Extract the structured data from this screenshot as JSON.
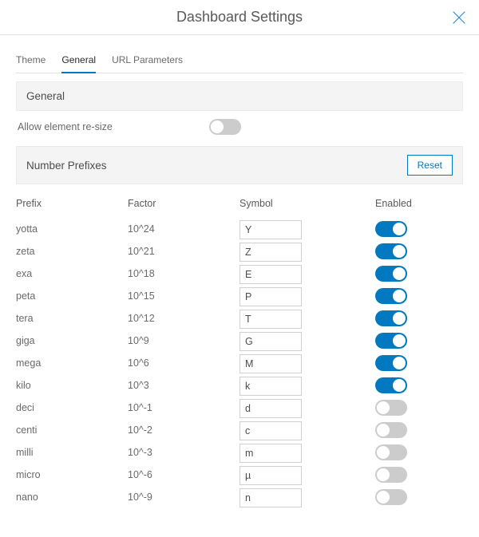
{
  "colors": {
    "accent": "#0079c1",
    "border": "#e0e0e0",
    "band_bg": "#f4f4f4",
    "text": "#4c4c4c",
    "muted": "#6a6a6a",
    "toggle_off": "#cccccc"
  },
  "header": {
    "title": "Dashboard Settings",
    "close_icon": "close-icon"
  },
  "tabs": [
    {
      "id": "theme",
      "label": "Theme",
      "active": false
    },
    {
      "id": "general",
      "label": "General",
      "active": true
    },
    {
      "id": "url",
      "label": "URL Parameters",
      "active": false
    }
  ],
  "sections": {
    "general": {
      "title": "General",
      "allow_resize": {
        "label": "Allow element re-size",
        "value": false
      }
    },
    "prefixes": {
      "title": "Number Prefixes",
      "reset_label": "Reset",
      "columns": {
        "prefix": "Prefix",
        "factor": "Factor",
        "symbol": "Symbol",
        "enabled": "Enabled"
      },
      "rows": [
        {
          "prefix": "yotta",
          "factor": "10^24",
          "symbol": "Y",
          "enabled": true
        },
        {
          "prefix": "zeta",
          "factor": "10^21",
          "symbol": "Z",
          "enabled": true
        },
        {
          "prefix": "exa",
          "factor": "10^18",
          "symbol": "E",
          "enabled": true
        },
        {
          "prefix": "peta",
          "factor": "10^15",
          "symbol": "P",
          "enabled": true
        },
        {
          "prefix": "tera",
          "factor": "10^12",
          "symbol": "T",
          "enabled": true
        },
        {
          "prefix": "giga",
          "factor": "10^9",
          "symbol": "G",
          "enabled": true
        },
        {
          "prefix": "mega",
          "factor": "10^6",
          "symbol": "M",
          "enabled": true
        },
        {
          "prefix": "kilo",
          "factor": "10^3",
          "symbol": "k",
          "enabled": true
        },
        {
          "prefix": "deci",
          "factor": "10^-1",
          "symbol": "d",
          "enabled": false
        },
        {
          "prefix": "centi",
          "factor": "10^-2",
          "symbol": "c",
          "enabled": false
        },
        {
          "prefix": "milli",
          "factor": "10^-3",
          "symbol": "m",
          "enabled": false
        },
        {
          "prefix": "micro",
          "factor": "10^-6",
          "symbol": "µ",
          "enabled": false
        },
        {
          "prefix": "nano",
          "factor": "10^-9",
          "symbol": "n",
          "enabled": false
        }
      ]
    }
  }
}
